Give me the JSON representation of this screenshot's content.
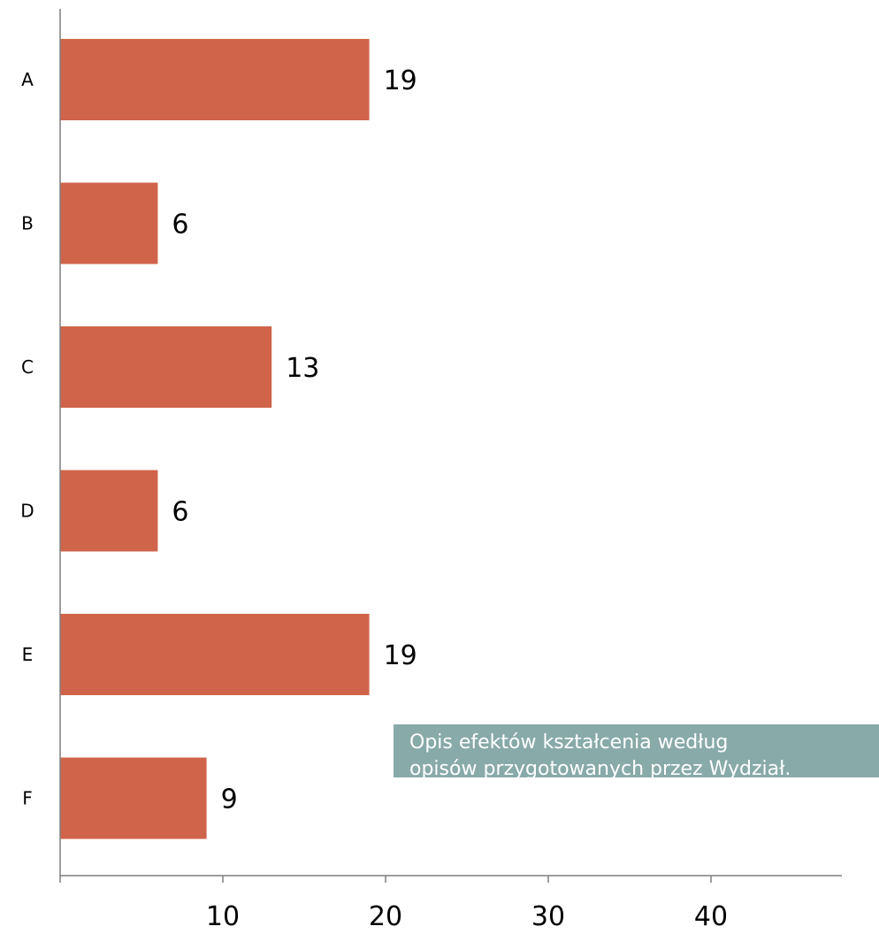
{
  "chart_data": {
    "type": "bar",
    "orientation": "horizontal",
    "categories": [
      "A",
      "B",
      "C",
      "D",
      "E",
      "F"
    ],
    "values": [
      19,
      6,
      13,
      6,
      19,
      9
    ],
    "data_labels": [
      "19",
      "6",
      "13",
      "6",
      "19",
      "9"
    ],
    "x_ticks": [
      "10",
      "20",
      "30",
      "40"
    ],
    "xlim": [
      0,
      48
    ],
    "bar_color": "#d0644a",
    "grid": false,
    "legend": {
      "placement": "bottom-right",
      "lines": [
        "Opis efektów kształcenia według",
        "opisów przygotowanych przez Wydział."
      ],
      "background": "#88aaa9"
    }
  }
}
